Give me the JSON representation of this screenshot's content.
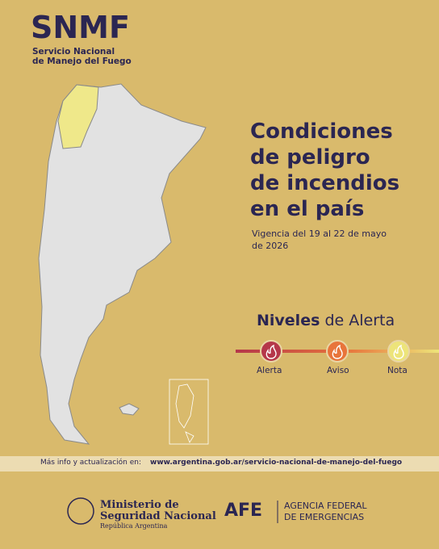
{
  "header": {
    "title": "SNMF",
    "subtitle": [
      "Servicio Nacional",
      "de Manejo del Fuego"
    ]
  },
  "headline": [
    "Condiciones",
    "de peligro",
    "de incendios",
    "en el país"
  ],
  "validity": [
    "Vigencia del 19 al 22 de mayo",
    "de 2026"
  ],
  "legend": {
    "title_bold": "Niveles",
    "title_rest": "de Alerta",
    "levels": [
      "Alerta",
      "Aviso",
      "Nota"
    ]
  },
  "info": {
    "label": "Más info y actualización en:",
    "url": "www.argentina.gob.ar/servicio-nacional-de-manejo-del-fuego"
  },
  "logos": {
    "ministry": [
      "Ministerio de",
      "Seguridad Nacional",
      "República Argentina"
    ],
    "agency_short": "AFE",
    "agency": [
      "AGENCIA FEDERAL",
      "DE EMERGENCIAS"
    ]
  }
}
